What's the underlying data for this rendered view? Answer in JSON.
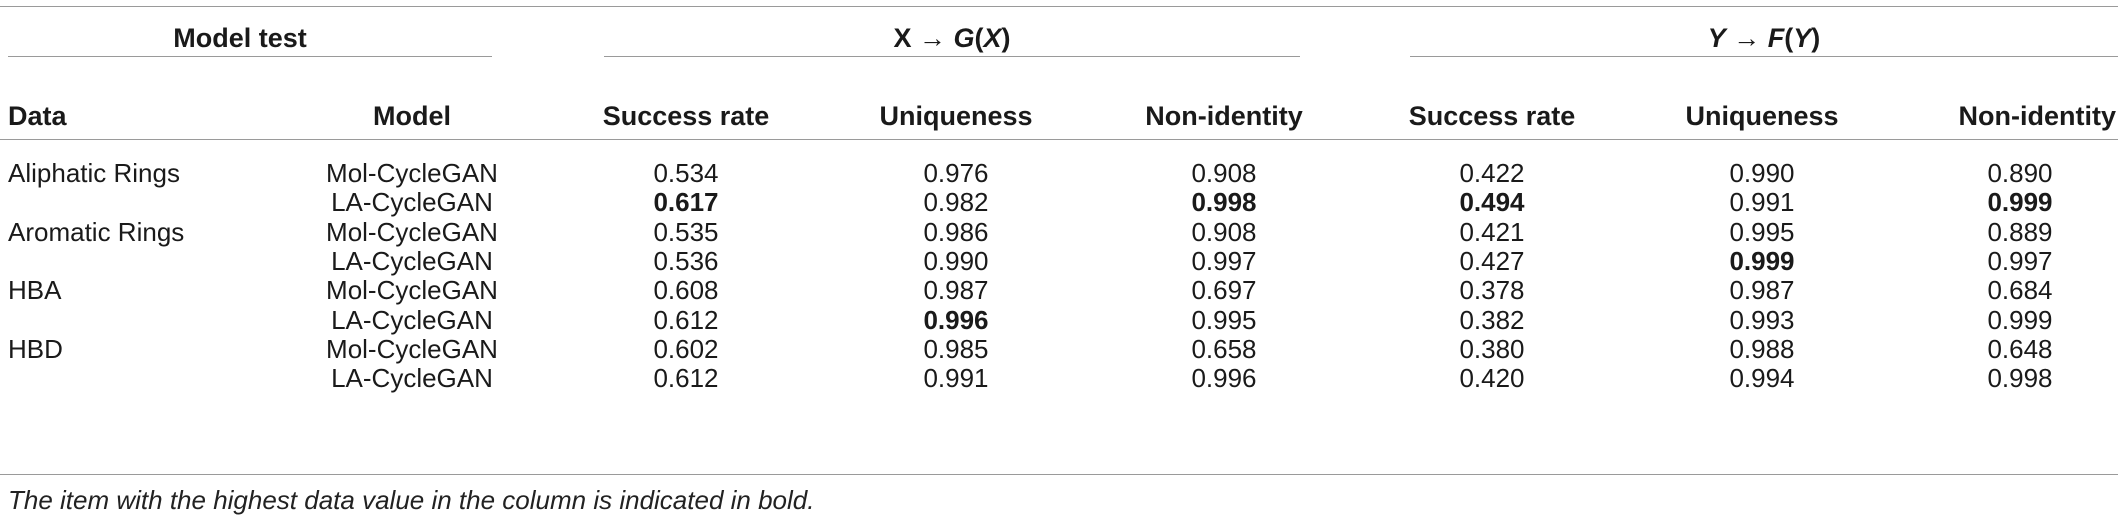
{
  "table": {
    "group_headers": {
      "model_test": "Model test",
      "x_to_gx": {
        "left": "X → ",
        "func": "G",
        "open": "(",
        "arg": "X",
        "close": ")"
      },
      "y_to_fy": {
        "var": "Y",
        "arrow": " → ",
        "func": "F",
        "open": "(",
        "arg": "Y",
        "close": ")"
      }
    },
    "columns": [
      "Data",
      "Model",
      "Success rate",
      "Uniqueness",
      "Non-identity",
      "Success rate",
      "Uniqueness",
      "Non-identity"
    ],
    "rows": [
      {
        "data": "Aliphatic Rings",
        "model": "Mol-CycleGAN",
        "values": [
          "0.534",
          "0.976",
          "0.908",
          "0.422",
          "0.990",
          "0.890"
        ],
        "bold": [
          false,
          false,
          false,
          false,
          false,
          false
        ]
      },
      {
        "data": "",
        "model": "LA-CycleGAN",
        "values": [
          "0.617",
          "0.982",
          "0.998",
          "0.494",
          "0.991",
          "0.999"
        ],
        "bold": [
          true,
          false,
          true,
          true,
          false,
          true
        ]
      },
      {
        "data": "Aromatic Rings",
        "model": "Mol-CycleGAN",
        "values": [
          "0.535",
          "0.986",
          "0.908",
          "0.421",
          "0.995",
          "0.889"
        ],
        "bold": [
          false,
          false,
          false,
          false,
          false,
          false
        ]
      },
      {
        "data": "",
        "model": "LA-CycleGAN",
        "values": [
          "0.536",
          "0.990",
          "0.997",
          "0.427",
          "0.999",
          "0.997"
        ],
        "bold": [
          false,
          false,
          false,
          false,
          true,
          false
        ]
      },
      {
        "data": "HBA",
        "model": "Mol-CycleGAN",
        "values": [
          "0.608",
          "0.987",
          "0.697",
          "0.378",
          "0.987",
          "0.684"
        ],
        "bold": [
          false,
          false,
          false,
          false,
          false,
          false
        ]
      },
      {
        "data": "",
        "model": "LA-CycleGAN",
        "values": [
          "0.612",
          "0.996",
          "0.995",
          "0.382",
          "0.993",
          "0.999"
        ],
        "bold": [
          false,
          true,
          false,
          false,
          false,
          false
        ]
      },
      {
        "data": "HBD",
        "model": "Mol-CycleGAN",
        "values": [
          "0.602",
          "0.985",
          "0.658",
          "0.380",
          "0.988",
          "0.648"
        ],
        "bold": [
          false,
          false,
          false,
          false,
          false,
          false
        ]
      },
      {
        "data": "",
        "model": "LA-CycleGAN",
        "values": [
          "0.612",
          "0.991",
          "0.996",
          "0.420",
          "0.994",
          "0.998"
        ],
        "bold": [
          false,
          false,
          false,
          false,
          false,
          false
        ]
      }
    ],
    "footnote": "The item with the highest data value in the column is indicated in bold."
  }
}
